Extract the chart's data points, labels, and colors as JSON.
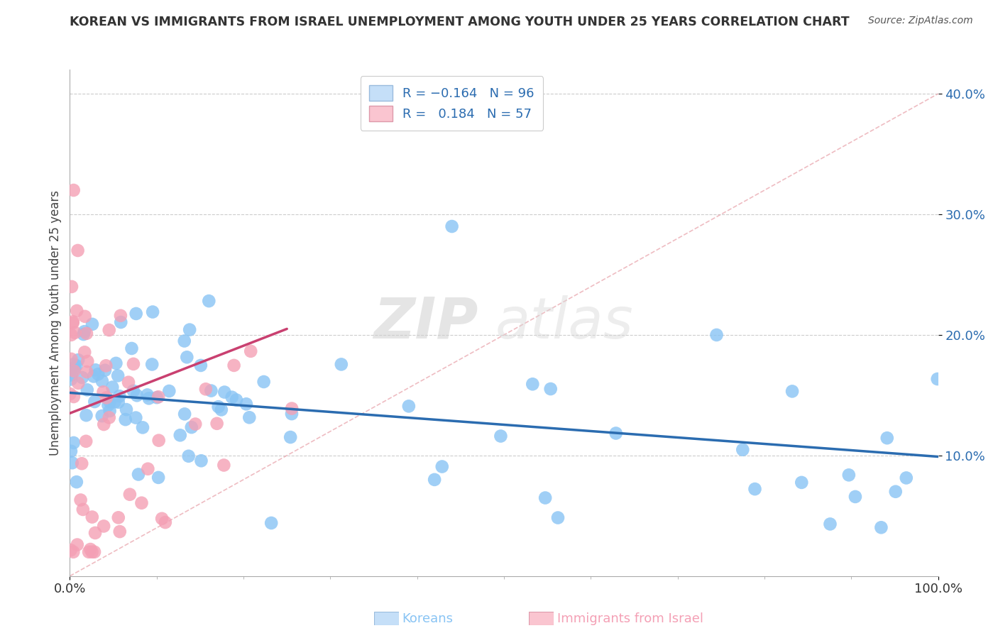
{
  "title": "KOREAN VS IMMIGRANTS FROM ISRAEL UNEMPLOYMENT AMONG YOUTH UNDER 25 YEARS CORRELATION CHART",
  "source": "Source: ZipAtlas.com",
  "ylabel": "Unemployment Among Youth under 25 years",
  "xlim": [
    0.0,
    1.0
  ],
  "ylim": [
    0.0,
    0.42
  ],
  "korean_R": -0.164,
  "korean_N": 96,
  "israel_R": 0.184,
  "israel_N": 57,
  "korean_color": "#89C4F4",
  "israel_color": "#F4A0B5",
  "korean_line_color": "#2B6CB0",
  "israel_line_color": "#C94070",
  "legend_korean_fill": "#C5DFF8",
  "legend_israel_fill": "#FAC5D0",
  "diag_color": "#DDAAAA",
  "watermark_zip": "#C8C8C8",
  "watermark_atlas": "#D5D5D5",
  "bg_color": "#FFFFFF",
  "grid_color": "#CCCCCC",
  "ytick_color": "#2B6CB0",
  "xtick_color": "#333333",
  "title_color": "#333333",
  "source_color": "#555555",
  "legend_text_color": "#333333",
  "legend_value_color": "#2B6CB0",
  "bottom_korean_color": "#89C4F4",
  "bottom_israel_color": "#F4A0B5"
}
